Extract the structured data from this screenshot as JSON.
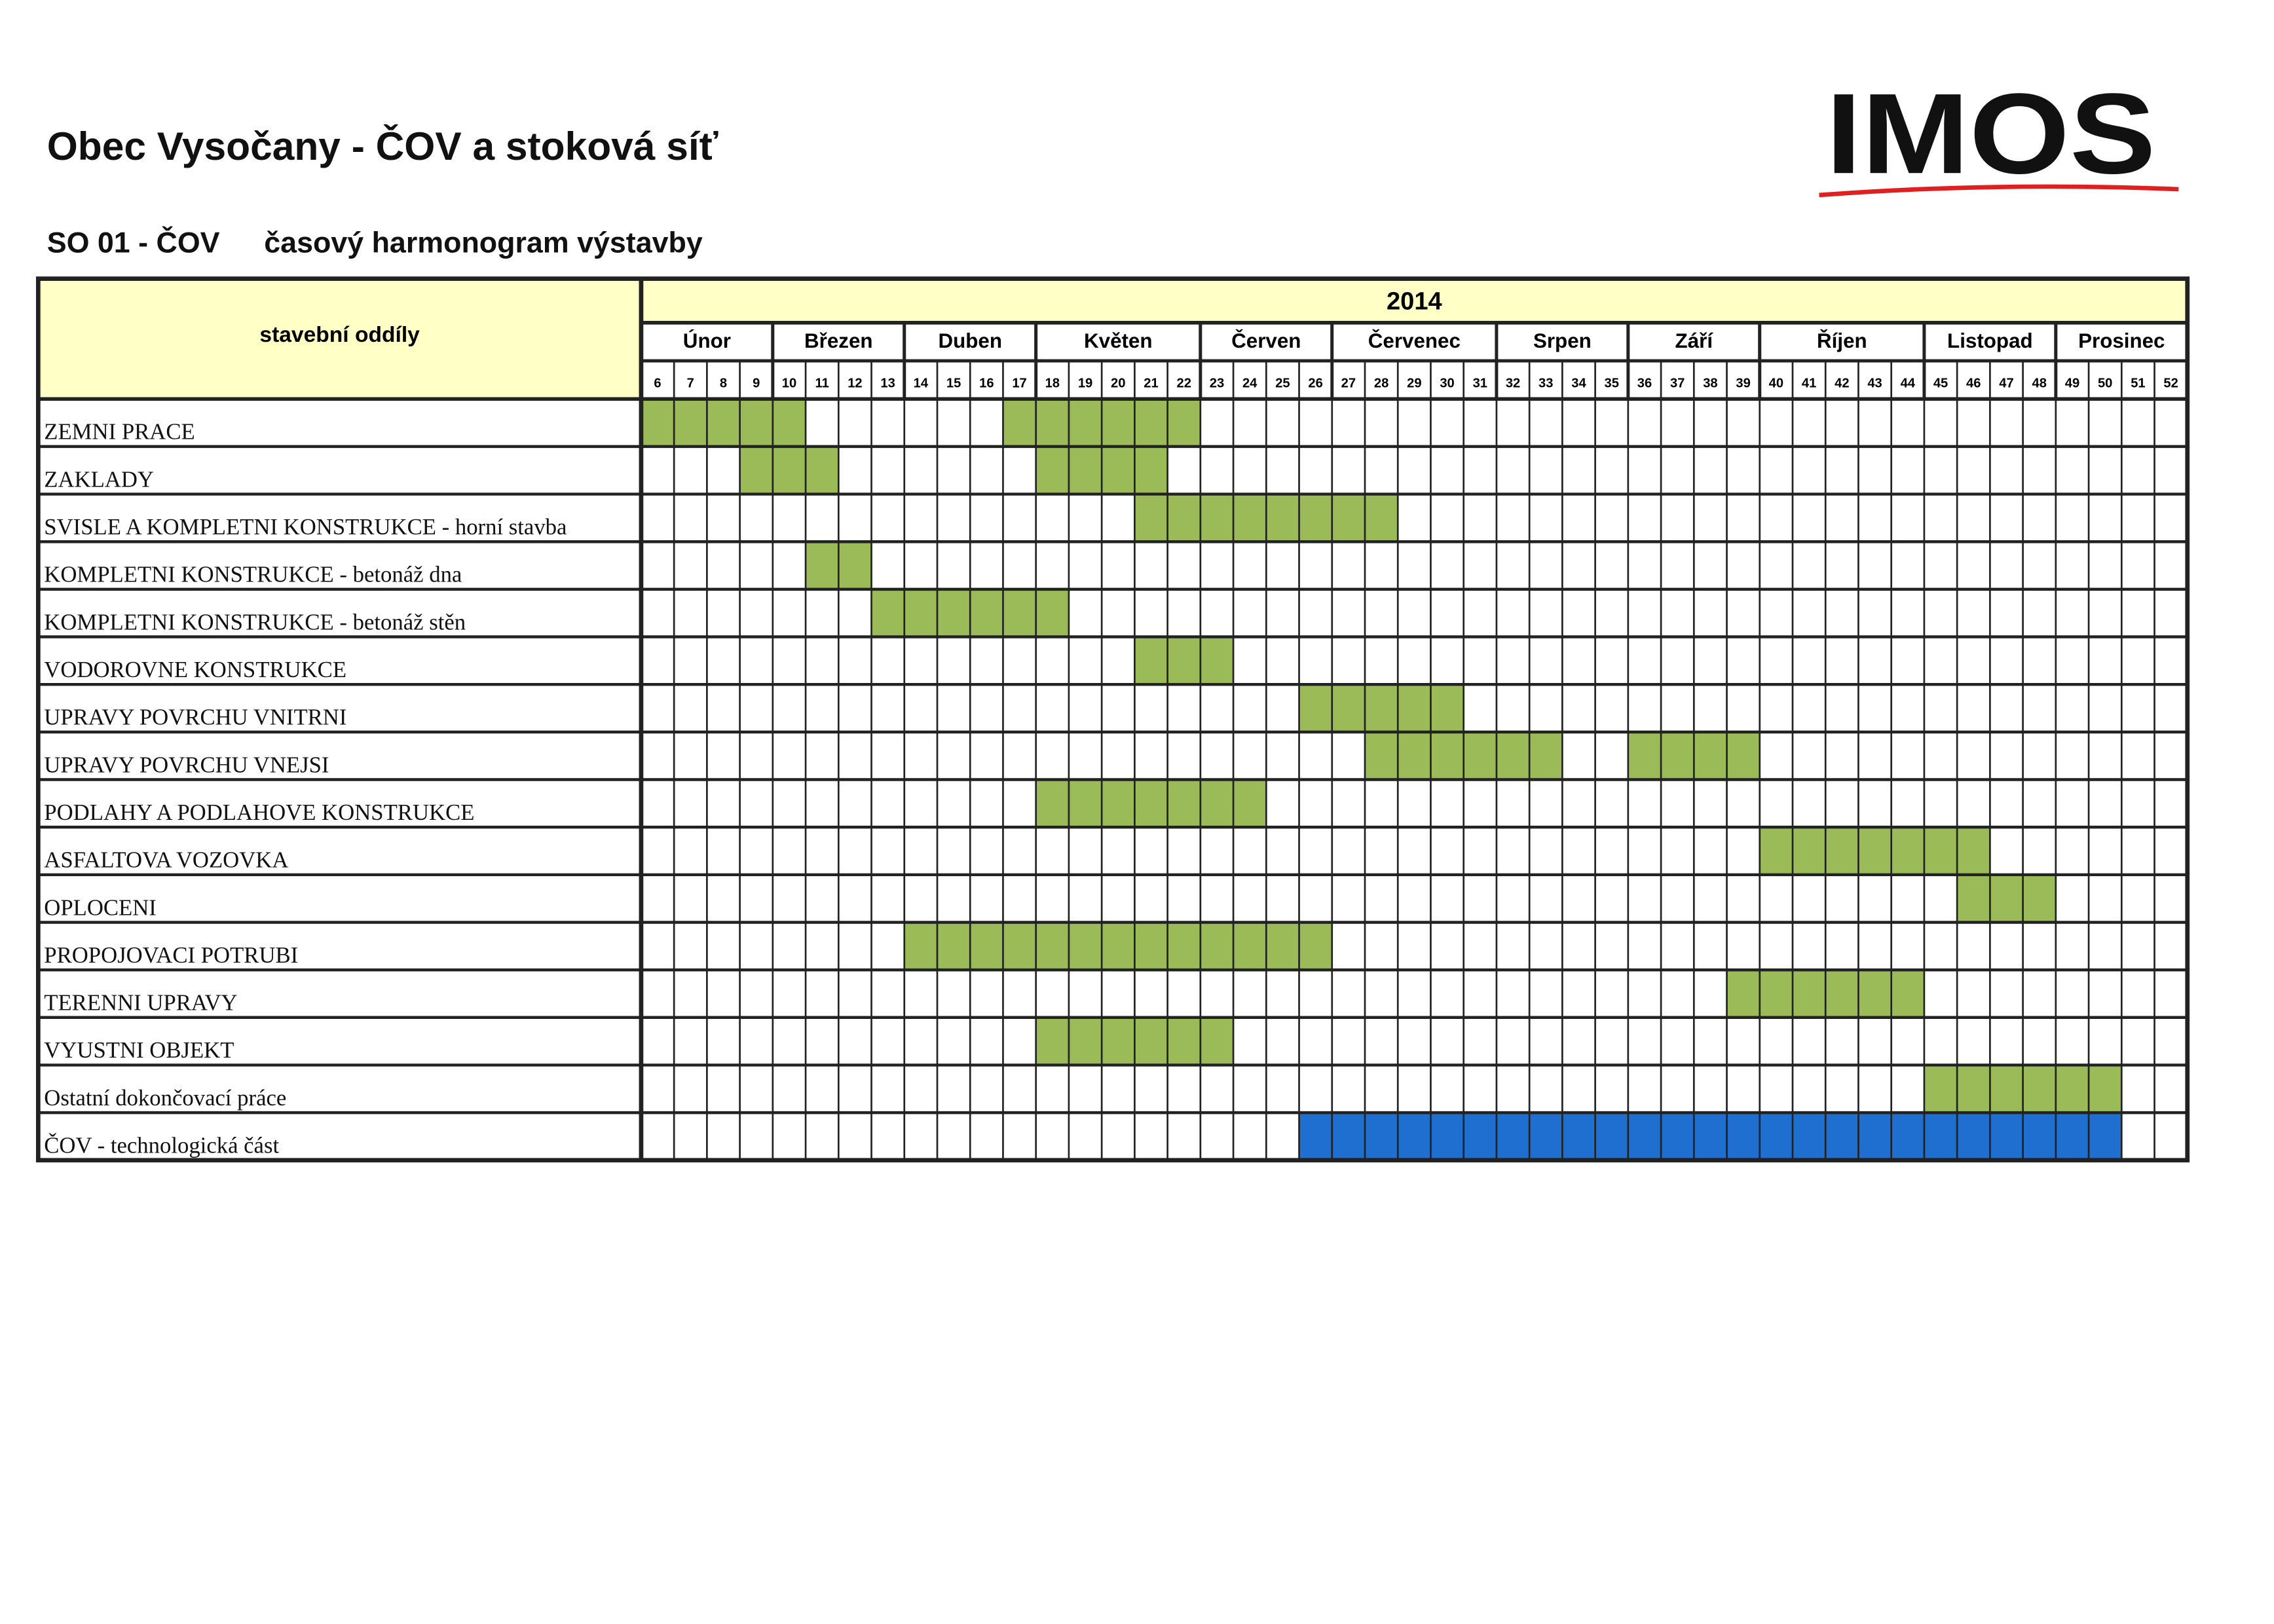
{
  "header": {
    "title": "Obec Vysočany - ČOV a stoková síť",
    "code": "SO 01 - ČOV",
    "subtitle": "časový harmonogram výstavby",
    "logo": "IMOS"
  },
  "table": {
    "corner": "stavební oddíly",
    "year": "2014",
    "weeks": [
      6,
      7,
      8,
      9,
      10,
      11,
      12,
      13,
      14,
      15,
      16,
      17,
      18,
      19,
      20,
      21,
      22,
      23,
      24,
      25,
      26,
      27,
      28,
      29,
      30,
      31,
      32,
      33,
      34,
      35,
      36,
      37,
      38,
      39,
      40,
      41,
      42,
      43,
      44,
      45,
      46,
      47,
      48,
      49,
      50,
      51,
      52
    ],
    "months": [
      {
        "name": "Únor",
        "span": [
          6,
          9
        ]
      },
      {
        "name": "Březen",
        "span": [
          10,
          13
        ]
      },
      {
        "name": "Duben",
        "span": [
          14,
          17
        ]
      },
      {
        "name": "Květen",
        "span": [
          18,
          22
        ]
      },
      {
        "name": "Červen",
        "span": [
          23,
          26
        ]
      },
      {
        "name": "Červenec",
        "span": [
          27,
          31
        ]
      },
      {
        "name": "Srpen",
        "span": [
          32,
          35
        ]
      },
      {
        "name": "Září",
        "span": [
          36,
          39
        ]
      },
      {
        "name": "Říjen",
        "span": [
          40,
          44
        ]
      },
      {
        "name": "Listopad",
        "span": [
          45,
          48
        ]
      },
      {
        "name": "Prosinec",
        "span": [
          49,
          52
        ]
      }
    ],
    "rows": [
      {
        "label": "ZEMNI PRACE",
        "color": "#9bbb59",
        "spans": [
          [
            6,
            10
          ],
          [
            17,
            22
          ]
        ]
      },
      {
        "label": "ZAKLADY",
        "color": "#9bbb59",
        "spans": [
          [
            9,
            11
          ],
          [
            18,
            21
          ]
        ]
      },
      {
        "label": "SVISLE A KOMPLETNI KONSTRUKCE - horní stavba",
        "color": "#9bbb59",
        "spans": [
          [
            21,
            28
          ]
        ]
      },
      {
        "label": "KOMPLETNI KONSTRUKCE - betonáž dna",
        "color": "#9bbb59",
        "spans": [
          [
            11,
            12
          ]
        ]
      },
      {
        "label": "KOMPLETNI KONSTRUKCE - betonáž stěn",
        "color": "#9bbb59",
        "spans": [
          [
            13,
            18
          ]
        ]
      },
      {
        "label": "VODOROVNE KONSTRUKCE",
        "color": "#9bbb59",
        "spans": [
          [
            21,
            23
          ]
        ]
      },
      {
        "label": "UPRAVY POVRCHU VNITRNI",
        "color": "#9bbb59",
        "spans": [
          [
            26,
            30
          ]
        ]
      },
      {
        "label": "UPRAVY POVRCHU VNEJSI",
        "color": "#9bbb59",
        "spans": [
          [
            28,
            33
          ],
          [
            36,
            39
          ]
        ]
      },
      {
        "label": "PODLAHY A PODLAHOVE KONSTRUKCE",
        "color": "#9bbb59",
        "spans": [
          [
            18,
            24
          ]
        ]
      },
      {
        "label": "ASFALTOVA VOZOVKA",
        "color": "#9bbb59",
        "spans": [
          [
            40,
            46
          ]
        ]
      },
      {
        "label": "OPLOCENI",
        "color": "#9bbb59",
        "spans": [
          [
            46,
            48
          ]
        ]
      },
      {
        "label": "PROPOJOVACI POTRUBI",
        "color": "#9bbb59",
        "spans": [
          [
            14,
            26
          ]
        ]
      },
      {
        "label": "TERENNI UPRAVY",
        "color": "#9bbb59",
        "spans": [
          [
            39,
            44
          ]
        ]
      },
      {
        "label": "VYUSTNI OBJEKT",
        "color": "#9bbb59",
        "spans": [
          [
            18,
            23
          ]
        ]
      },
      {
        "label": "Ostatní dokončovací práce",
        "color": "#9bbb59",
        "spans": [
          [
            45,
            50
          ]
        ]
      },
      {
        "label": "ČOV - technologická část",
        "color": "#1f6fd0",
        "spans": [
          [
            26,
            50
          ]
        ]
      }
    ]
  }
}
